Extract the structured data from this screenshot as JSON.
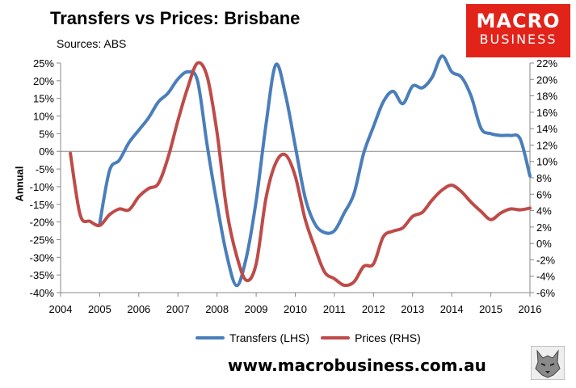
{
  "header": {
    "title": "Transfers vs Prices: Brisbane",
    "subtitle": "Sources: ABS"
  },
  "logo": {
    "line1": "MACRO",
    "line2": "BUSINESS",
    "color": "#e2231a"
  },
  "footer": {
    "url": "www.macrobusiness.com.au"
  },
  "legend": [
    {
      "label": "Transfers (LHS)",
      "color": "#4a7ebb"
    },
    {
      "label": "Prices (RHS)",
      "color": "#be4b48"
    }
  ],
  "chart_data": {
    "type": "line",
    "ylabel": "Annual",
    "xlim": [
      2004,
      2016
    ],
    "x_ticks": [
      "2004",
      "2005",
      "2006",
      "2007",
      "2008",
      "2009",
      "2010",
      "2011",
      "2012",
      "2013",
      "2014",
      "2015",
      "2016"
    ],
    "y_left": {
      "min": -40,
      "max": 25,
      "step": 5,
      "ticks": [
        "25%",
        "20%",
        "15%",
        "10%",
        "5%",
        "0%",
        "-5%",
        "-10%",
        "-15%",
        "-20%",
        "-25%",
        "-30%",
        "-35%",
        "-40%"
      ]
    },
    "y_right": {
      "min": -6,
      "max": 22,
      "step": 2,
      "ticks": [
        "22%",
        "20%",
        "18%",
        "16%",
        "14%",
        "12%",
        "10%",
        "8%",
        "6%",
        "4%",
        "2%",
        "0%",
        "-2%",
        "-4%",
        "-6%"
      ]
    },
    "grid": false,
    "zero_line": true,
    "series": [
      {
        "name": "Transfers (LHS)",
        "axis": "left",
        "color": "#4a7ebb",
        "x": [
          2005.0,
          2005.25,
          2005.5,
          2005.75,
          2006.0,
          2006.25,
          2006.5,
          2006.75,
          2007.0,
          2007.25,
          2007.5,
          2007.75,
          2008.0,
          2008.25,
          2008.5,
          2008.75,
          2009.0,
          2009.25,
          2009.5,
          2009.75,
          2010.0,
          2010.25,
          2010.5,
          2010.75,
          2011.0,
          2011.25,
          2011.5,
          2011.75,
          2012.0,
          2012.25,
          2012.5,
          2012.75,
          2013.0,
          2013.25,
          2013.5,
          2013.75,
          2014.0,
          2014.25,
          2014.5,
          2014.75,
          2015.0,
          2015.25,
          2015.5,
          2015.75,
          2016.0
        ],
        "values": [
          -20.5,
          -5.5,
          -2.5,
          2.5,
          6.0,
          9.5,
          14.0,
          16.5,
          20.5,
          22.5,
          20.0,
          1.5,
          -15.0,
          -29.5,
          -38.0,
          -30.0,
          -14.0,
          7.5,
          24.5,
          16.0,
          1.5,
          -13.0,
          -20.5,
          -23.0,
          -22.5,
          -17.5,
          -12.0,
          -0.5,
          7.0,
          14.0,
          17.0,
          13.5,
          18.5,
          18.0,
          21.0,
          27.0,
          22.5,
          21.0,
          15.5,
          6.5,
          5.0,
          4.5,
          4.5,
          3.5,
          -7.0
        ]
      },
      {
        "name": "Prices (RHS)",
        "axis": "right",
        "color": "#be4b48",
        "x": [
          2004.25,
          2004.5,
          2004.75,
          2005.0,
          2005.25,
          2005.5,
          2005.75,
          2006.0,
          2006.25,
          2006.5,
          2006.75,
          2007.0,
          2007.25,
          2007.5,
          2007.75,
          2008.0,
          2008.25,
          2008.5,
          2008.75,
          2009.0,
          2009.25,
          2009.5,
          2009.75,
          2010.0,
          2010.25,
          2010.5,
          2010.75,
          2011.0,
          2011.25,
          2011.5,
          2011.75,
          2012.0,
          2012.25,
          2012.5,
          2012.75,
          2013.0,
          2013.25,
          2013.5,
          2013.75,
          2014.0,
          2014.25,
          2014.5,
          2014.75,
          2015.0,
          2015.25,
          2015.5,
          2015.75,
          2016.0
        ],
        "values": [
          11.0,
          3.5,
          2.7,
          2.2,
          3.5,
          4.2,
          4.1,
          5.7,
          6.7,
          7.3,
          10.5,
          15.0,
          19.0,
          22.0,
          20.3,
          13.5,
          4.0,
          -1.5,
          -4.5,
          -2.5,
          5.5,
          9.8,
          10.8,
          8.2,
          3.0,
          -0.5,
          -3.5,
          -4.3,
          -5.1,
          -4.7,
          -2.8,
          -2.5,
          0.8,
          1.5,
          1.9,
          3.3,
          3.8,
          5.3,
          6.5,
          7.1,
          6.3,
          5.0,
          3.9,
          2.9,
          3.7,
          4.2,
          4.1,
          4.3
        ]
      }
    ]
  }
}
